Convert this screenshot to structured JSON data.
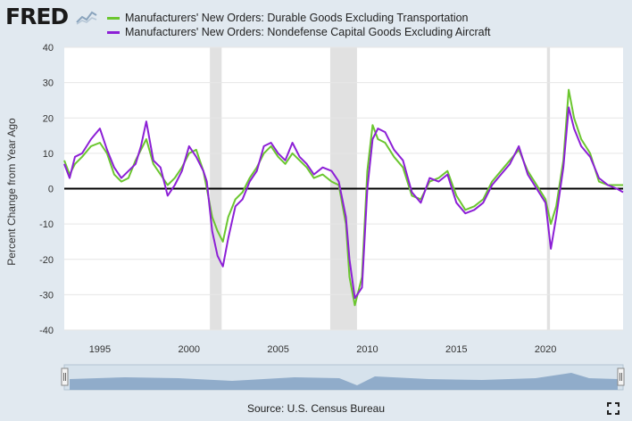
{
  "brand": {
    "logo_text": "FRED",
    "logo_icon": "chart-line-icon"
  },
  "chart_data": {
    "type": "line",
    "title": "",
    "ylabel": "Percent Change from Year Ago",
    "xlabel": "",
    "xlim": [
      1993.0,
      2024.35
    ],
    "ylim": [
      -40,
      40
    ],
    "x_ticks": [
      1995,
      2000,
      2005,
      2010,
      2015,
      2020
    ],
    "y_ticks": [
      -40,
      -30,
      -20,
      -10,
      0,
      10,
      20,
      30,
      40
    ],
    "grid": true,
    "zero_line": true,
    "legend_position": "top",
    "recessions": [
      [
        2001.17,
        2001.83
      ],
      [
        2007.92,
        2009.42
      ],
      [
        2020.08,
        2020.25
      ]
    ],
    "series": [
      {
        "name": "Manufacturers' New Orders: Durable Goods Excluding Transportation",
        "color": "#6bc62f",
        "points": [
          [
            1993.0,
            8
          ],
          [
            1993.3,
            4
          ],
          [
            1993.6,
            7
          ],
          [
            1994.0,
            9
          ],
          [
            1994.5,
            12
          ],
          [
            1995.0,
            13
          ],
          [
            1995.4,
            10
          ],
          [
            1995.8,
            4
          ],
          [
            1996.2,
            2
          ],
          [
            1996.6,
            3
          ],
          [
            1997.0,
            8
          ],
          [
            1997.3,
            11
          ],
          [
            1997.6,
            14
          ],
          [
            1998.0,
            7
          ],
          [
            1998.4,
            4
          ],
          [
            1998.8,
            1
          ],
          [
            1999.2,
            3
          ],
          [
            1999.6,
            6
          ],
          [
            2000.0,
            10
          ],
          [
            2000.4,
            11
          ],
          [
            2000.8,
            5
          ],
          [
            2001.0,
            0
          ],
          [
            2001.3,
            -8
          ],
          [
            2001.6,
            -12
          ],
          [
            2001.9,
            -15
          ],
          [
            2002.2,
            -8
          ],
          [
            2002.6,
            -3
          ],
          [
            2003.0,
            -1
          ],
          [
            2003.4,
            3
          ],
          [
            2003.8,
            6
          ],
          [
            2004.2,
            10
          ],
          [
            2004.6,
            12
          ],
          [
            2005.0,
            9
          ],
          [
            2005.4,
            7
          ],
          [
            2005.8,
            10
          ],
          [
            2006.2,
            8
          ],
          [
            2006.6,
            6
          ],
          [
            2007.0,
            3
          ],
          [
            2007.5,
            4
          ],
          [
            2008.0,
            2
          ],
          [
            2008.4,
            1
          ],
          [
            2008.8,
            -10
          ],
          [
            2009.0,
            -25
          ],
          [
            2009.3,
            -33
          ],
          [
            2009.7,
            -25
          ],
          [
            2010.0,
            5
          ],
          [
            2010.3,
            18
          ],
          [
            2010.6,
            14
          ],
          [
            2011.0,
            13
          ],
          [
            2011.5,
            9
          ],
          [
            2012.0,
            6
          ],
          [
            2012.5,
            -2
          ],
          [
            2013.0,
            -3
          ],
          [
            2013.5,
            2
          ],
          [
            2014.0,
            3
          ],
          [
            2014.5,
            5
          ],
          [
            2015.0,
            -2
          ],
          [
            2015.5,
            -6
          ],
          [
            2016.0,
            -5
          ],
          [
            2016.5,
            -3
          ],
          [
            2017.0,
            2
          ],
          [
            2017.5,
            5
          ],
          [
            2018.0,
            8
          ],
          [
            2018.5,
            11
          ],
          [
            2019.0,
            5
          ],
          [
            2019.5,
            1
          ],
          [
            2020.0,
            -3
          ],
          [
            2020.3,
            -10
          ],
          [
            2020.6,
            -5
          ],
          [
            2021.0,
            8
          ],
          [
            2021.3,
            28
          ],
          [
            2021.6,
            20
          ],
          [
            2022.0,
            14
          ],
          [
            2022.5,
            10
          ],
          [
            2023.0,
            2
          ],
          [
            2023.5,
            1
          ],
          [
            2024.0,
            1
          ],
          [
            2024.35,
            1
          ]
        ]
      },
      {
        "name": "Manufacturers' New Orders: Nondefense Capital Goods Excluding Aircraft",
        "color": "#8c1fd6",
        "points": [
          [
            1993.0,
            7
          ],
          [
            1993.3,
            3
          ],
          [
            1993.6,
            9
          ],
          [
            1994.0,
            10
          ],
          [
            1994.5,
            14
          ],
          [
            1995.0,
            17
          ],
          [
            1995.4,
            11
          ],
          [
            1995.8,
            6
          ],
          [
            1996.2,
            3
          ],
          [
            1996.6,
            5
          ],
          [
            1997.0,
            7
          ],
          [
            1997.3,
            12
          ],
          [
            1997.6,
            19
          ],
          [
            1998.0,
            8
          ],
          [
            1998.4,
            6
          ],
          [
            1998.8,
            -2
          ],
          [
            1999.2,
            1
          ],
          [
            1999.6,
            5
          ],
          [
            2000.0,
            12
          ],
          [
            2000.4,
            9
          ],
          [
            2000.8,
            5
          ],
          [
            2001.0,
            2
          ],
          [
            2001.3,
            -12
          ],
          [
            2001.6,
            -19
          ],
          [
            2001.9,
            -22
          ],
          [
            2002.2,
            -14
          ],
          [
            2002.6,
            -5
          ],
          [
            2003.0,
            -3
          ],
          [
            2003.4,
            2
          ],
          [
            2003.8,
            5
          ],
          [
            2004.2,
            12
          ],
          [
            2004.6,
            13
          ],
          [
            2005.0,
            10
          ],
          [
            2005.4,
            8
          ],
          [
            2005.8,
            13
          ],
          [
            2006.2,
            9
          ],
          [
            2006.6,
            7
          ],
          [
            2007.0,
            4
          ],
          [
            2007.5,
            6
          ],
          [
            2008.0,
            5
          ],
          [
            2008.4,
            2
          ],
          [
            2008.8,
            -8
          ],
          [
            2009.0,
            -20
          ],
          [
            2009.3,
            -31
          ],
          [
            2009.7,
            -28
          ],
          [
            2010.0,
            0
          ],
          [
            2010.3,
            14
          ],
          [
            2010.6,
            17
          ],
          [
            2011.0,
            16
          ],
          [
            2011.5,
            11
          ],
          [
            2012.0,
            8
          ],
          [
            2012.5,
            -1
          ],
          [
            2013.0,
            -4
          ],
          [
            2013.5,
            3
          ],
          [
            2014.0,
            2
          ],
          [
            2014.5,
            4
          ],
          [
            2015.0,
            -4
          ],
          [
            2015.5,
            -7
          ],
          [
            2016.0,
            -6
          ],
          [
            2016.5,
            -4
          ],
          [
            2017.0,
            1
          ],
          [
            2017.5,
            4
          ],
          [
            2018.0,
            7
          ],
          [
            2018.5,
            12
          ],
          [
            2019.0,
            4
          ],
          [
            2019.5,
            0
          ],
          [
            2020.0,
            -4
          ],
          [
            2020.3,
            -17
          ],
          [
            2020.6,
            -8
          ],
          [
            2021.0,
            6
          ],
          [
            2021.3,
            23
          ],
          [
            2021.6,
            17
          ],
          [
            2022.0,
            12
          ],
          [
            2022.5,
            9
          ],
          [
            2023.0,
            3
          ],
          [
            2023.5,
            1
          ],
          [
            2024.0,
            0
          ],
          [
            2024.35,
            -1
          ]
        ]
      }
    ]
  },
  "navigator": {
    "left_handle": "slider-handle-icon",
    "right_handle": "slider-handle-icon"
  },
  "footer": {
    "source": "Source: U.S. Census Bureau"
  },
  "expand_icon": "fullscreen-icon"
}
